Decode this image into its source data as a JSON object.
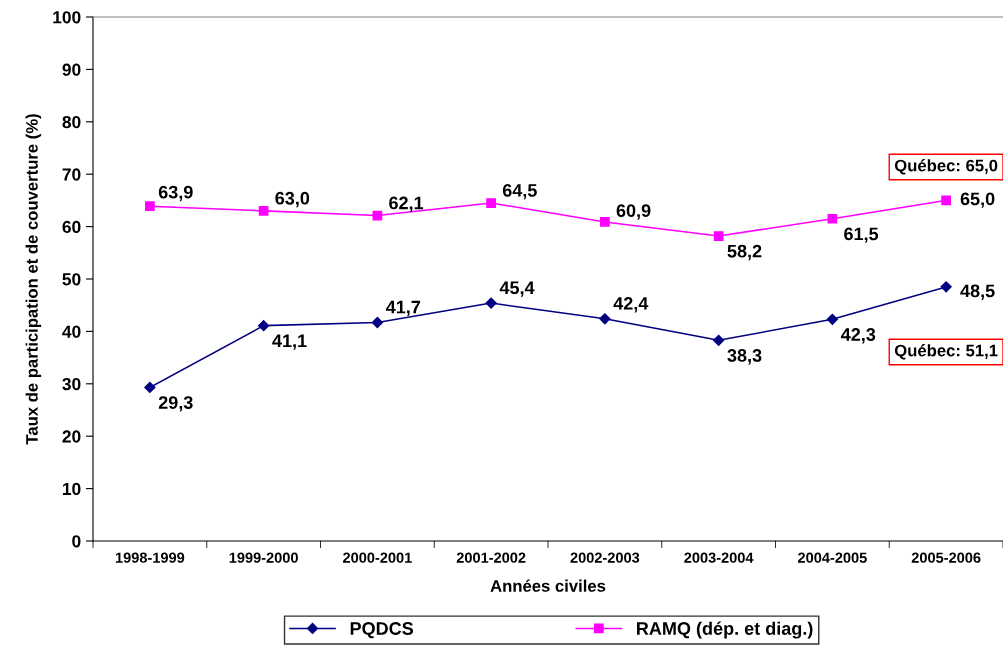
{
  "chart_data": {
    "type": "line",
    "xlabel": "Années civiles",
    "ylabel": "Taux de participation et de couverture (%)",
    "categories": [
      "1998-1999",
      "1999-2000",
      "2000-2001",
      "2001-2002",
      "2002-2003",
      "2003-2004",
      "2004-2005",
      "2005-2006"
    ],
    "series": [
      {
        "name": "PQDCS",
        "color": "#000080",
        "marker": "diamond",
        "values": [
          29.3,
          41.1,
          41.7,
          45.4,
          42.4,
          38.3,
          42.3,
          48.5
        ],
        "value_labels": [
          "29,3",
          "41,1",
          "41,7",
          "45,4",
          "42,4",
          "38,3",
          "42,3",
          "48,5"
        ]
      },
      {
        "name": "RAMQ (dép. et diag.)",
        "color": "#ff00ff",
        "marker": "square",
        "values": [
          63.9,
          63.0,
          62.1,
          64.5,
          60.9,
          58.2,
          61.5,
          65.0
        ],
        "value_labels": [
          "63,9",
          "63,0",
          "62,1",
          "64,5",
          "60,9",
          "58,2",
          "61,5",
          "65,0"
        ]
      }
    ],
    "ylim": [
      0,
      100
    ],
    "yticks": [
      0,
      10,
      20,
      30,
      40,
      50,
      60,
      70,
      80,
      90,
      100
    ],
    "annotations": [
      "Québec: 65,0",
      "Québec: 51,1"
    ],
    "grid": false,
    "legend": "bottom",
    "line_style": "solid"
  }
}
